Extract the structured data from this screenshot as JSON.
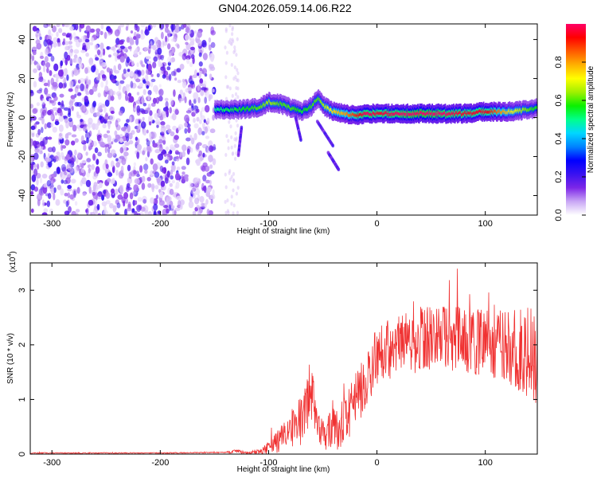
{
  "title": "GN04.2026.059.14.06.R22",
  "chart_data": [
    {
      "type": "heatmap",
      "xlabel": "Height of straight line (km)",
      "ylabel": "Frequency (Hz)",
      "xlim": [
        -320,
        148
      ],
      "ylim": [
        -50,
        48
      ],
      "xticks": [
        -300,
        -200,
        -100,
        0,
        100
      ],
      "yticks": [
        -40,
        -20,
        0,
        20,
        40
      ],
      "grid": false,
      "signal_track": {
        "x": [
          -150,
          -130,
          -110,
          -100,
          -90,
          -80,
          -70,
          -60,
          -55,
          -50,
          -40,
          -30,
          -20,
          -10,
          0,
          20,
          40,
          60,
          80,
          100,
          120,
          140,
          148
        ],
        "y": [
          4,
          4,
          5,
          8,
          7,
          5,
          3,
          6,
          10,
          6,
          3,
          2,
          1,
          2,
          2,
          2,
          2,
          2,
          2,
          3,
          3,
          4,
          5
        ],
        "peak_amplitude": [
          0.45,
          0.5,
          0.55,
          0.6,
          0.55,
          0.55,
          0.5,
          0.55,
          0.55,
          0.6,
          0.7,
          0.75,
          0.85,
          0.95,
          0.9,
          0.95,
          1.0,
          0.95,
          0.9,
          0.9,
          0.7,
          0.55,
          0.5
        ]
      },
      "background_noise_extent_km": [
        -320,
        -150
      ],
      "colorbar": {
        "label": "Normalized spectral amplitude",
        "range": [
          0,
          1
        ],
        "ticks": [
          "0.0",
          "0.2",
          "0.4",
          "0.6",
          "0.8"
        ],
        "colormap": [
          "#ffffff",
          "#c9a7f5",
          "#7d26e8",
          "#3a12f0",
          "#0000ff",
          "#0082ff",
          "#00d7ff",
          "#00ff8c",
          "#0af000",
          "#a0f000",
          "#ffff00",
          "#ffb000",
          "#ff5a00",
          "#ff0000",
          "#ff0066"
        ]
      }
    },
    {
      "type": "line",
      "xlabel": "Height of straight line (km)",
      "ylabel": "SNR (10 * v/v)",
      "yscale_label": "(x10",
      "yscale_exp": "4",
      "xlim": [
        -320,
        148
      ],
      "ylim": [
        0,
        3.5
      ],
      "xticks": [
        -300,
        -200,
        -100,
        0,
        100
      ],
      "yticks": [
        0,
        1,
        2,
        3
      ],
      "color": "#f03232",
      "series_envelope": {
        "x": [
          -320,
          -200,
          -140,
          -130,
          -120,
          -110,
          -100,
          -90,
          -80,
          -70,
          -65,
          -60,
          -55,
          -50,
          -45,
          -40,
          -35,
          -30,
          -25,
          -20,
          -15,
          -10,
          -5,
          0,
          10,
          20,
          30,
          40,
          50,
          60,
          70,
          80,
          90,
          100,
          110,
          120,
          130,
          140,
          148
        ],
        "base": [
          0.02,
          0.02,
          0.03,
          0.05,
          0.02,
          0.05,
          0.1,
          0.25,
          0.45,
          0.6,
          0.9,
          1.1,
          0.5,
          0.35,
          0.4,
          0.45,
          0.5,
          0.55,
          0.75,
          1.0,
          1.15,
          1.35,
          1.6,
          1.75,
          1.9,
          2.0,
          2.05,
          2.1,
          2.15,
          2.15,
          2.1,
          2.1,
          2.05,
          2.05,
          2.0,
          1.95,
          1.9,
          1.85,
          1.8
        ],
        "amplitude": [
          0.01,
          0.01,
          0.01,
          0.04,
          0.02,
          0.05,
          0.12,
          0.25,
          0.35,
          0.45,
          0.5,
          0.5,
          0.35,
          0.3,
          0.35,
          0.4,
          0.45,
          0.5,
          0.5,
          0.5,
          0.5,
          0.5,
          0.55,
          0.55,
          0.55,
          0.55,
          0.6,
          0.6,
          0.6,
          0.6,
          0.6,
          0.6,
          0.6,
          0.6,
          0.65,
          0.7,
          0.75,
          0.85,
          0.9
        ]
      }
    }
  ]
}
